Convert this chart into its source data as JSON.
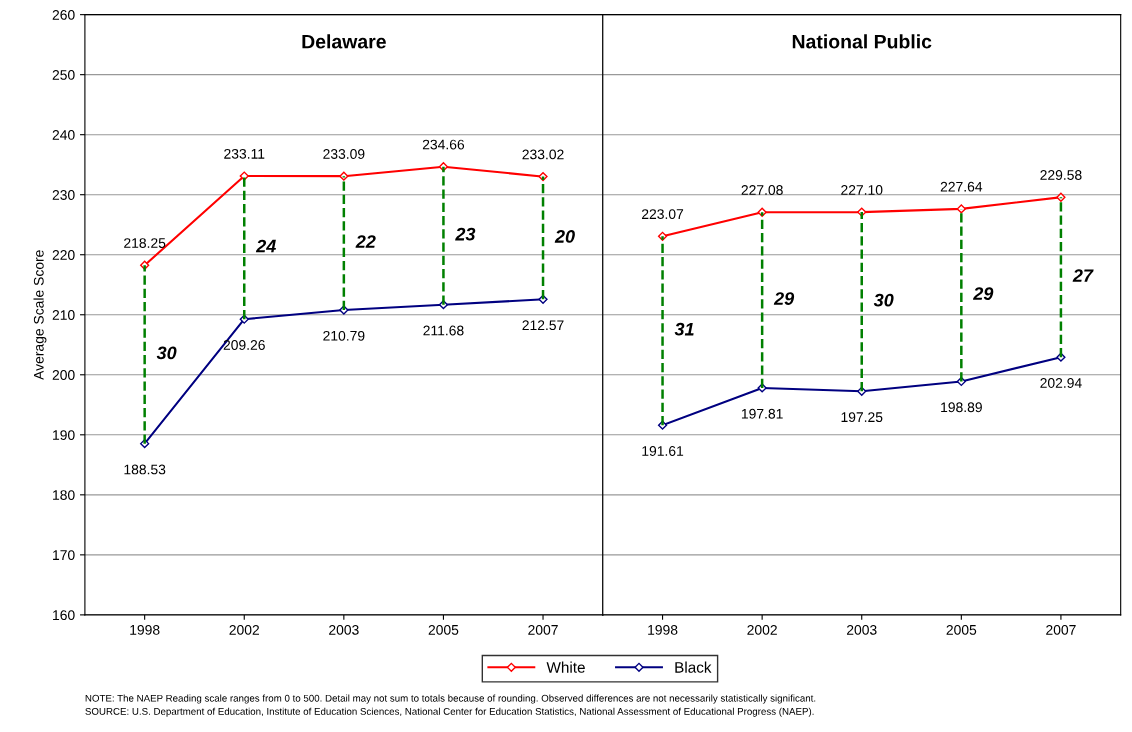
{
  "chart_data": [
    {
      "type": "line",
      "title": "Delaware",
      "ylabel": "Average Scale Score",
      "categories": [
        "1998",
        "2002",
        "2003",
        "2005",
        "2007"
      ],
      "series": [
        {
          "name": "White",
          "color": "#ff0000",
          "values": [
            218.25,
            233.11,
            233.09,
            234.66,
            233.02
          ]
        },
        {
          "name": "Black",
          "color": "#000080",
          "values": [
            188.53,
            209.26,
            210.79,
            211.68,
            212.57
          ]
        }
      ],
      "ylim": [
        160,
        260
      ],
      "yticks": [
        160,
        170,
        180,
        190,
        200,
        210,
        220,
        230,
        240,
        250,
        260
      ],
      "grid": "y",
      "marker": "diamond",
      "line_style": "solid",
      "data_labels": true,
      "legend": "bottom",
      "annotations": [
        "30",
        "24",
        "22",
        "23",
        "20"
      ]
    },
    {
      "type": "line",
      "title": "National Public",
      "categories": [
        "1998",
        "2002",
        "2003",
        "2005",
        "2007"
      ],
      "series": [
        {
          "name": "White",
          "color": "#ff0000",
          "values": [
            223.07,
            227.08,
            227.1,
            227.64,
            229.58
          ],
          "value_labels": [
            "223.07",
            "227.08",
            "227.10",
            "227.64",
            "229.58"
          ]
        },
        {
          "name": "Black",
          "color": "#000080",
          "values": [
            191.61,
            197.81,
            197.25,
            198.89,
            202.94
          ]
        }
      ],
      "ylim": [
        160,
        260
      ],
      "yticks": [
        160,
        170,
        180,
        190,
        200,
        210,
        220,
        230,
        240,
        250,
        260
      ],
      "grid": "y",
      "marker": "diamond",
      "line_style": "solid",
      "data_labels": true,
      "tick_labels": "x",
      "legend": "bottom",
      "annotations": [
        "31",
        "29",
        "30",
        "29",
        "27",
        "NOTE: The NAEP Reading scale ranges from 0 to 500. Detail may not sum to totals because of rounding. Observed differences are not necessarily statistically significant.",
        "SOURCE: U.S. Department of Education, Institute of Education Sciences, National Center for Education Statistics, National Assessment of Educational Progress (NAEP)."
      ]
    }
  ]
}
